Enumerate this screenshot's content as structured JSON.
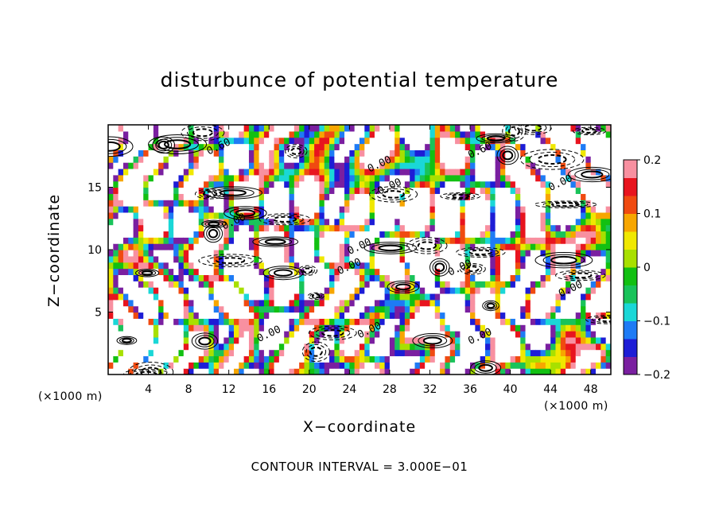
{
  "chart_data": {
    "type": "heatmap",
    "title": "disturbunce of potential temperature",
    "xlabel": "X−coordinate",
    "ylabel": "Z−coordinate",
    "x_unit_label": "(×1000 m)",
    "z_unit_label": "(×1000 m)",
    "x_ticks": [
      4,
      8,
      12,
      16,
      20,
      24,
      28,
      32,
      36,
      40,
      44,
      48
    ],
    "y_ticks": [
      5,
      10,
      15
    ],
    "xlim": [
      0,
      50
    ],
    "ylim": [
      0,
      20
    ],
    "colorbar": {
      "min": -0.2,
      "max": 0.2,
      "ticks": [
        0.2,
        0.1,
        0,
        -0.1,
        -0.2
      ],
      "tick_labels": [
        "0.2",
        "0.1",
        "0",
        "−0.1",
        "−0.2"
      ],
      "colors": [
        "#7a1fa0",
        "#1d1dd6",
        "#1e7bf5",
        "#1ad7d7",
        "#19c35a",
        "#12c012",
        "#a8e000",
        "#f0e800",
        "#f7a600",
        "#f04a10",
        "#e8141e",
        "#f890a0"
      ]
    },
    "contour_interval_text": "CONTOUR INTERVAL = 3.000E−01",
    "contour_labels": [
      "0.60",
      "0.60",
      "0.00",
      "0.00",
      "0.00",
      "0.00",
      "0.00",
      "0.00",
      "0.00",
      "0.00",
      "0.00",
      "0.00",
      "0.00"
    ],
    "grid": false,
    "legend": "colorbar-right"
  }
}
